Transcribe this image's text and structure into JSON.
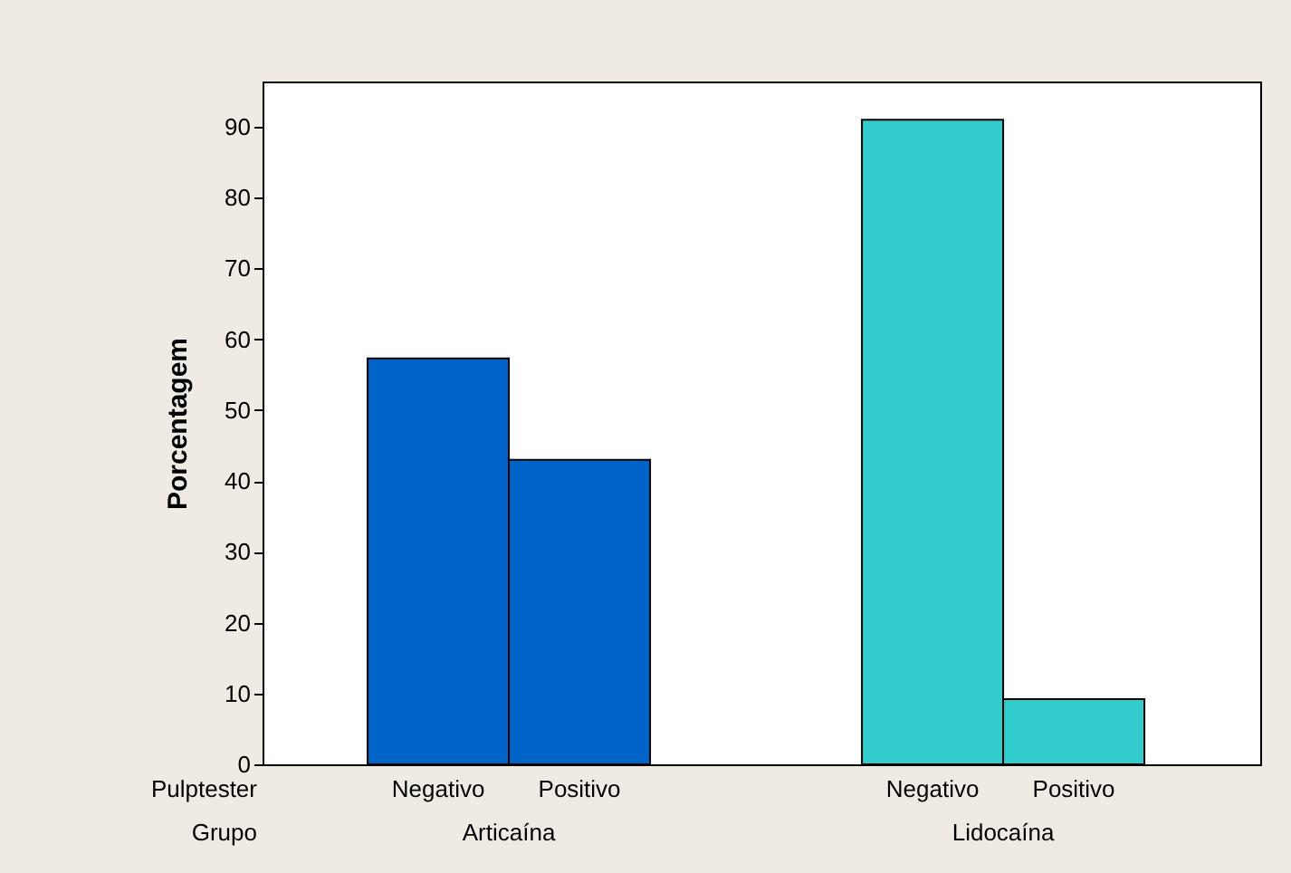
{
  "chart_data": {
    "type": "bar",
    "ylabel": "Porcentagem",
    "categories": [
      "Negativo",
      "Positivo",
      "Negativo",
      "Positivo"
    ],
    "series": [
      {
        "name": "Articaína",
        "color": "#0064c8",
        "values": [
          57.3,
          43.0,
          null,
          null
        ]
      },
      {
        "name": "Lidocaína",
        "color": "#33cccc",
        "values": [
          null,
          null,
          91.0,
          9.2
        ]
      }
    ],
    "annotations": [
      "Pulptester",
      "Grupo"
    ],
    "ylim": [
      0,
      96.4
    ],
    "yticks": [
      0,
      10,
      20,
      30,
      40,
      50,
      60,
      70,
      80,
      90
    ],
    "grid": false
  }
}
